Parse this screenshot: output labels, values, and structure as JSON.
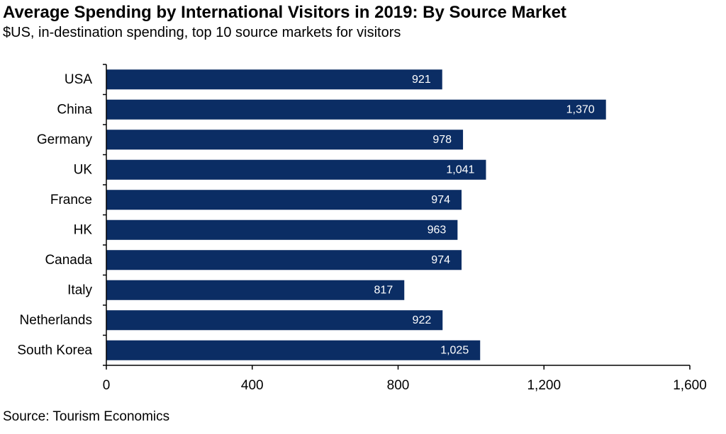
{
  "title": "Average Spending by International Visitors in 2019: By Source Market",
  "subtitle": "$US, in-destination spending, top 10 source markets for visitors",
  "source": "Source: Tourism Economics",
  "colors": {
    "bar": "#0b2d64",
    "axis": "#000000",
    "data_label": "#ffffff"
  },
  "chart_data": {
    "type": "bar",
    "orientation": "horizontal",
    "categories": [
      "USA",
      "China",
      "Germany",
      "UK",
      "France",
      "HK",
      "Canada",
      "Italy",
      "Netherlands",
      "South Korea"
    ],
    "values": [
      921,
      1370,
      978,
      1041,
      974,
      963,
      974,
      817,
      922,
      1025
    ],
    "data_labels": [
      "921",
      "1,370",
      "978",
      "1,041",
      "974",
      "963",
      "974",
      "817",
      "922",
      "1,025"
    ],
    "xlim": [
      0,
      1600
    ],
    "xticks": [
      0,
      400,
      800,
      1200,
      1600
    ],
    "xtick_labels": [
      "0",
      "400",
      "800",
      "1,200",
      "1,600"
    ],
    "grid": false,
    "legend": "none"
  }
}
